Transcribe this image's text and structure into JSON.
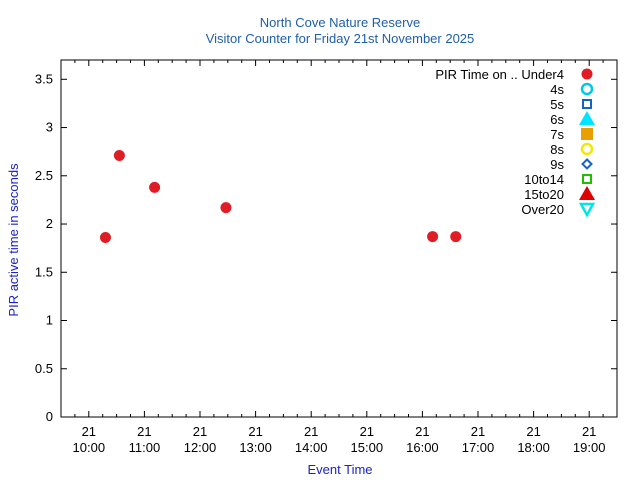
{
  "chart_data": {
    "type": "scatter",
    "title": "North Cove Nature Reserve",
    "subtitle": "Visitor Counter for Friday 21st November 2025",
    "xlabel": "Event Time",
    "ylabel": "PIR active time in seconds",
    "ylim": [
      0,
      3.7
    ],
    "yticks": [
      0,
      0.5,
      1,
      1.5,
      2,
      2.5,
      3,
      3.5
    ],
    "ytick_labels": [
      "0",
      "0.5",
      "1",
      "1.5",
      "2",
      "2.5",
      "3",
      "3.5"
    ],
    "xlim": [
      "2025-11-21 09:30",
      "2025-11-21 19:30"
    ],
    "xticks": [
      "2025-11-21 10:00",
      "2025-11-21 11:00",
      "2025-11-21 12:00",
      "2025-11-21 13:00",
      "2025-11-21 14:00",
      "2025-11-21 15:00",
      "2025-11-21 16:00",
      "2025-11-21 17:00",
      "2025-11-21 18:00",
      "2025-11-21 19:00"
    ],
    "xtick_day_labels": [
      "21",
      "21",
      "21",
      "21",
      "21",
      "21",
      "21",
      "21",
      "21",
      "21"
    ],
    "xtick_time_labels": [
      "10:00",
      "11:00",
      "12:00",
      "13:00",
      "14:00",
      "15:00",
      "16:00",
      "17:00",
      "18:00",
      "19:00"
    ],
    "grid": false,
    "legend_position": "top-right",
    "legend_title": "PIR Time on ..",
    "series": [
      {
        "name": "Under4",
        "marker": "circle-filled",
        "color": "#e01c24",
        "points": [
          {
            "x": "2025-11-21 10:18",
            "y": 1.86
          },
          {
            "x": "2025-11-21 10:33",
            "y": 2.71
          },
          {
            "x": "2025-11-21 11:11",
            "y": 2.38
          },
          {
            "x": "2025-11-21 12:28",
            "y": 2.17
          },
          {
            "x": "2025-11-21 16:11",
            "y": 1.87
          },
          {
            "x": "2025-11-21 16:36",
            "y": 1.87
          }
        ]
      },
      {
        "name": "4s",
        "marker": "circle-open",
        "color": "#00c8e8",
        "points": []
      },
      {
        "name": "5s",
        "marker": "square-open",
        "color": "#1565c0",
        "points": []
      },
      {
        "name": "6s",
        "marker": "triangle-up-filled",
        "color": "#00e5ff",
        "points": []
      },
      {
        "name": "7s",
        "marker": "square-filled",
        "color": "#e8a000",
        "points": []
      },
      {
        "name": "8s",
        "marker": "circle-open",
        "color": "#f5e800",
        "points": []
      },
      {
        "name": "9s",
        "marker": "diamond-open",
        "color": "#1565c0",
        "points": []
      },
      {
        "name": "10to14",
        "marker": "square-open",
        "color": "#20c000",
        "points": []
      },
      {
        "name": "15to20",
        "marker": "triangle-up-filled",
        "color": "#e00000",
        "points": []
      },
      {
        "name": "Over20",
        "marker": "triangle-down-open",
        "color": "#00e5e5",
        "points": []
      }
    ]
  }
}
